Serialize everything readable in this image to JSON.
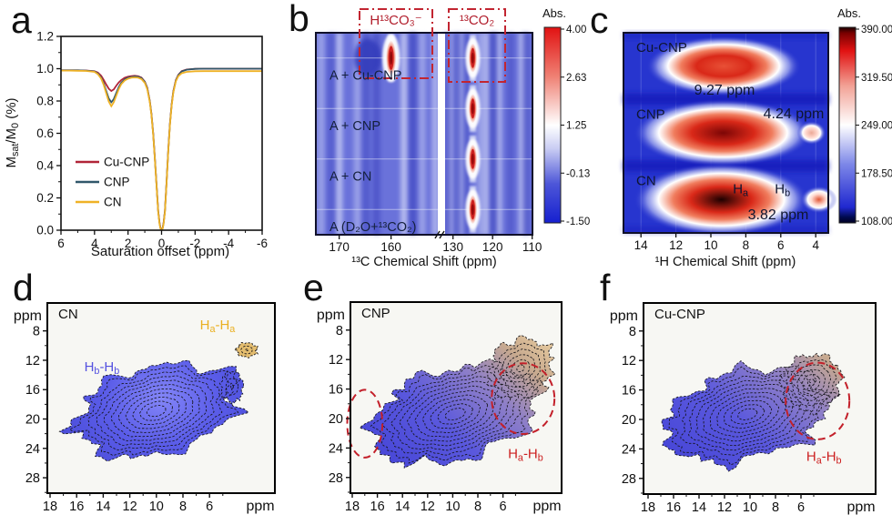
{
  "chart_data": [
    {
      "tag": "a",
      "type": "line",
      "xlabel": "Saturation offset (ppm)",
      "ylabel": "M_{sat}/M_{0} (%)",
      "xlim": [
        6,
        -6
      ],
      "ylim": [
        0,
        1.2
      ],
      "xticks": [
        6,
        4,
        2,
        0,
        -2,
        -4,
        -6
      ],
      "yticks": [
        "0.0",
        "0.2",
        "0.4",
        "0.6",
        "0.8",
        "1.0",
        "1.2"
      ],
      "x": [
        6,
        5.5,
        5,
        4.5,
        4,
        3.8,
        3.6,
        3.45,
        3.3,
        3.15,
        3,
        2.85,
        2.7,
        2.55,
        2.4,
        2.2,
        2,
        1.8,
        1.6,
        1.4,
        1.2,
        1,
        0.85,
        0.7,
        0.6,
        0.5,
        0.4,
        0.3,
        0.2,
        0.12,
        0.06,
        0,
        -0.06,
        -0.12,
        -0.2,
        -0.3,
        -0.4,
        -0.5,
        -0.6,
        -0.7,
        -0.85,
        -1,
        -1.2,
        -1.5,
        -2,
        -2.5,
        -3,
        -4,
        -5,
        -6
      ],
      "series": [
        {
          "name": "Cu-CNP",
          "color": "#b02438",
          "y": [
            0.99,
            0.99,
            0.99,
            0.989,
            0.985,
            0.976,
            0.956,
            0.93,
            0.902,
            0.876,
            0.862,
            0.872,
            0.895,
            0.915,
            0.93,
            0.944,
            0.951,
            0.954,
            0.956,
            0.953,
            0.945,
            0.92,
            0.882,
            0.8,
            0.72,
            0.6,
            0.45,
            0.28,
            0.12,
            0.045,
            0.012,
            0.004,
            0.012,
            0.045,
            0.12,
            0.3,
            0.5,
            0.66,
            0.78,
            0.86,
            0.93,
            0.962,
            0.985,
            0.995,
            0.999,
            1,
            1,
            1,
            1,
            1
          ]
        },
        {
          "name": "CNP",
          "color": "#31576a",
          "y": [
            0.99,
            0.99,
            0.99,
            0.988,
            0.983,
            0.97,
            0.944,
            0.908,
            0.862,
            0.815,
            0.792,
            0.812,
            0.85,
            0.886,
            0.914,
            0.934,
            0.944,
            0.949,
            0.952,
            0.95,
            0.942,
            0.918,
            0.879,
            0.797,
            0.717,
            0.597,
            0.447,
            0.277,
            0.117,
            0.042,
            0.01,
            0.002,
            0.01,
            0.042,
            0.117,
            0.297,
            0.497,
            0.657,
            0.777,
            0.857,
            0.927,
            0.96,
            0.983,
            0.994,
            0.999,
            1,
            1,
            1,
            1,
            1
          ]
        },
        {
          "name": "CN",
          "color": "#efb226",
          "y": [
            0.988,
            0.988,
            0.987,
            0.986,
            0.98,
            0.966,
            0.938,
            0.898,
            0.848,
            0.796,
            0.768,
            0.792,
            0.834,
            0.874,
            0.905,
            0.927,
            0.938,
            0.944,
            0.946,
            0.944,
            0.936,
            0.912,
            0.873,
            0.792,
            0.712,
            0.592,
            0.442,
            0.272,
            0.112,
            0.038,
            0.008,
            0,
            0.008,
            0.038,
            0.112,
            0.292,
            0.492,
            0.652,
            0.772,
            0.852,
            0.922,
            0.954,
            0.972,
            0.98,
            0.984,
            0.985,
            0.985,
            0.985,
            0.985,
            0.985
          ]
        }
      ]
    },
    {
      "tag": "b",
      "type": "heatmap",
      "xlabel": "¹³C Chemical Shift (ppm)",
      "axis_break": true,
      "xticks_left": [
        170,
        160
      ],
      "xticks_right": [
        130,
        120,
        110
      ],
      "colorbar": {
        "title": "Abs.",
        "ticks": [
          "4.00",
          "2.63",
          "1.25",
          "-0.13",
          "-1.50"
        ]
      },
      "rows": [
        {
          "label": "A + Cu-CNP"
        },
        {
          "label": "A + CNP"
        },
        {
          "label": "A + CN"
        },
        {
          "label": "A (D₂O+¹³CO₂)"
        }
      ],
      "boxes": [
        {
          "label": "H¹³CO₃⁻"
        },
        {
          "label": "¹³CO₂"
        }
      ],
      "peaks": [
        {
          "row": 0,
          "ppm": 160,
          "big": true
        },
        {
          "row": 0,
          "ppm": 125
        },
        {
          "row": 1,
          "ppm": 125
        },
        {
          "row": 2,
          "ppm": 125
        },
        {
          "row": 3,
          "ppm": 125
        }
      ]
    },
    {
      "tag": "c",
      "type": "heatmap",
      "xlabel": "¹H Chemical Shift (ppm)",
      "xticks": [
        14,
        12,
        10,
        8,
        6,
        4
      ],
      "colorbar": {
        "title": "Abs.",
        "ticks": [
          "390.00",
          "319.50",
          "249.00",
          "178.50",
          "108.00"
        ]
      },
      "rows": [
        {
          "label": "Cu-CNP",
          "main_peak_ppm": 9.27,
          "peak_label": "9.27 ppm",
          "core": "#e85036"
        },
        {
          "label": "CNP",
          "main_peak_ppm": 9.3,
          "secondary_peak_ppm": 4.24,
          "peak_label": "4.24 ppm",
          "core": "#7c0606",
          "sec_core": "#eba896"
        },
        {
          "label": "CN",
          "main_peak_ppm": 9.4,
          "secondary_peak_ppm": 3.82,
          "peak_label": "3.82 ppm",
          "core": "#1d0000",
          "sec_core": "#e05636",
          "site_labels": [
            {
              "text": "H_{a}",
              "ppm": 8.3
            },
            {
              "text": "H_{b}",
              "ppm": 5.9
            }
          ]
        }
      ]
    },
    {
      "tag": "d",
      "type": "contour",
      "sample": "CN",
      "x_unit": "ppm",
      "y_unit": "ppm",
      "xticks": [
        18,
        16,
        14,
        12,
        10,
        8,
        6
      ],
      "yticks": [
        8,
        12,
        16,
        20,
        24,
        28
      ],
      "blobs": [
        {
          "name": "Hb-Hb-cross-peak",
          "cx": 10.0,
          "cy": 18.9,
          "rx": 6.0,
          "ry": 5.9,
          "rot": -14,
          "palette": "blue"
        },
        {
          "name": "edge-noise",
          "cx": 4.3,
          "cy": 15.6,
          "rx": 0.8,
          "ry": 2.0,
          "rot": 0,
          "palette": "blue"
        },
        {
          "name": "Ha-Ha-cross-peak",
          "cx": 3.2,
          "cy": 10.6,
          "rx": 0.75,
          "ry": 0.95,
          "rot": 0,
          "palette": "yellow"
        }
      ],
      "annotations": [
        {
          "text": "H_{b}-H_{b}",
          "color": "#5552e0",
          "x": 14.1,
          "y": 13.5
        },
        {
          "text": "H_{a}-H_{a}",
          "color": "#eab021",
          "x": 5.4,
          "y": 7.8
        }
      ],
      "highlight_ellipses": []
    },
    {
      "tag": "e",
      "type": "contour",
      "sample": "CNP",
      "x_unit": "ppm",
      "y_unit": "ppm",
      "xticks": [
        18,
        16,
        14,
        12,
        10,
        8,
        6
      ],
      "yticks": [
        8,
        12,
        16,
        20,
        24,
        28
      ],
      "blobs": [
        {
          "name": "main-cross-peak",
          "cx": 9.8,
          "cy": 19.4,
          "rx": 6.8,
          "ry": 6.0,
          "rot": -16,
          "palette": "blend"
        },
        {
          "name": "Ha-Hb-fan",
          "cx": 4.6,
          "cy": 13.2,
          "rx": 2.6,
          "ry": 3.6,
          "rot": -38,
          "palette": "blend"
        }
      ],
      "annotations": [
        {
          "text": "H_{a}-H_{b}",
          "color": "#cc1f1f",
          "x": 4.2,
          "y": 25.4
        }
      ],
      "highlight_ellipses": [
        {
          "cx": 17.0,
          "cy": 20.7,
          "rx": 1.4,
          "ry": 4.6
        },
        {
          "cx": 4.4,
          "cy": 17.3,
          "rx": 2.5,
          "ry": 4.8
        }
      ]
    },
    {
      "tag": "f",
      "type": "contour",
      "sample": "Cu-CNP",
      "x_unit": "ppm",
      "y_unit": "ppm",
      "xticks": [
        18,
        16,
        14,
        12,
        10,
        8,
        6
      ],
      "yticks": [
        8,
        12,
        16,
        20,
        24,
        28
      ],
      "blobs": [
        {
          "name": "main-cross-peak",
          "cx": 10.2,
          "cy": 19.3,
          "rx": 6.4,
          "ry": 5.9,
          "rot": -14,
          "palette": "blend"
        },
        {
          "name": "Ha-Hb-fan",
          "cx": 5.2,
          "cy": 15.0,
          "rx": 2.4,
          "ry": 3.5,
          "rot": -35,
          "palette": "blend"
        }
      ],
      "annotations": [
        {
          "text": "H_{a}-H_{b}",
          "color": "#cc1f1f",
          "x": 4.2,
          "y": 25.6
        }
      ],
      "highlight_ellipses": [
        {
          "cx": 4.7,
          "cy": 17.5,
          "rx": 2.5,
          "ry": 5.2
        }
      ]
    }
  ]
}
